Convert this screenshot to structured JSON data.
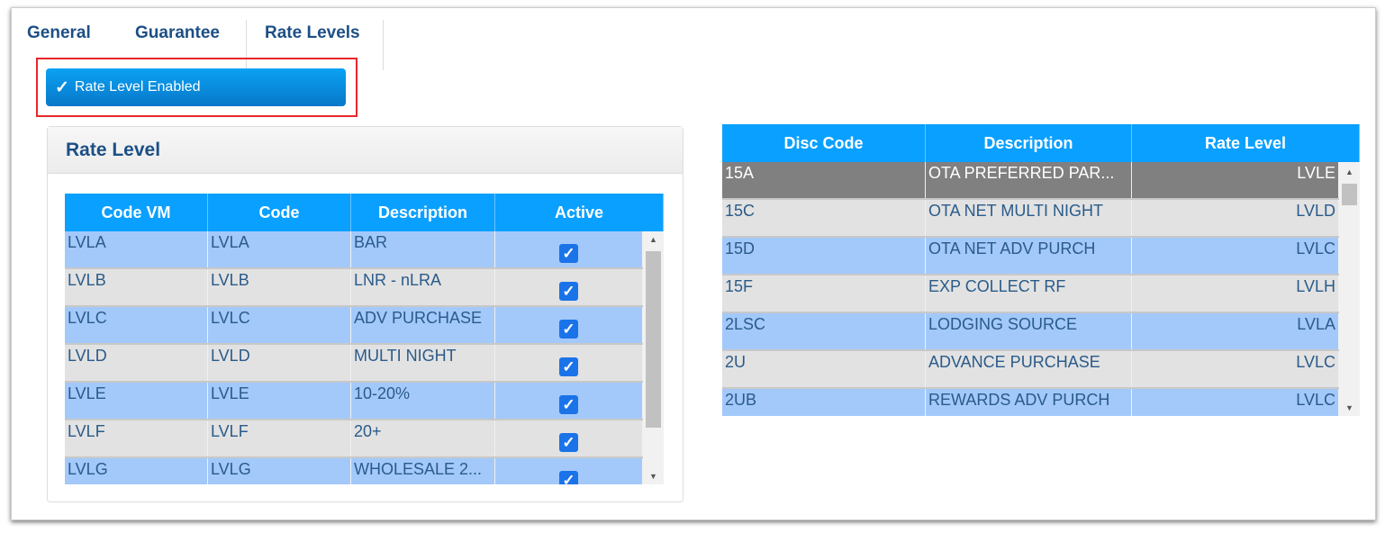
{
  "tabs": [
    "General",
    "Guarantee",
    "Rate Levels"
  ],
  "rate_level_enabled": {
    "label": "Rate Level Enabled",
    "checked": true
  },
  "panel": {
    "title": "Rate Level"
  },
  "left_table": {
    "columns": [
      "Code VM",
      "Code",
      "Description",
      "Active"
    ],
    "rows": [
      {
        "code_vm": "LVLA",
        "code": "LVLA",
        "description": "BAR",
        "active": true
      },
      {
        "code_vm": "LVLB",
        "code": "LVLB",
        "description": "LNR - nLRA",
        "active": true
      },
      {
        "code_vm": "LVLC",
        "code": "LVLC",
        "description": "ADV PURCHASE",
        "active": true
      },
      {
        "code_vm": "LVLD",
        "code": "LVLD",
        "description": "MULTI NIGHT",
        "active": true
      },
      {
        "code_vm": "LVLE",
        "code": "LVLE",
        "description": "10-20%",
        "active": true
      },
      {
        "code_vm": "LVLF",
        "code": "LVLF",
        "description": "20+",
        "active": true
      },
      {
        "code_vm": "LVLG",
        "code": "LVLG",
        "description": "WHOLESALE 2...",
        "active": true
      }
    ]
  },
  "right_table": {
    "columns": [
      "Disc Code",
      "Description",
      "Rate Level"
    ],
    "rows": [
      {
        "disc_code": "15A",
        "description": "OTA PREFERRED PAR...",
        "rate_level": "LVLE",
        "selected": true
      },
      {
        "disc_code": "15C",
        "description": "OTA NET MULTI NIGHT",
        "rate_level": "LVLD"
      },
      {
        "disc_code": "15D",
        "description": "OTA NET ADV PURCH",
        "rate_level": "LVLC"
      },
      {
        "disc_code": "15F",
        "description": "EXP COLLECT RF",
        "rate_level": "LVLH"
      },
      {
        "disc_code": "2LSC",
        "description": "LODGING SOURCE",
        "rate_level": "LVLA"
      },
      {
        "disc_code": "2U",
        "description": "ADVANCE PURCHASE",
        "rate_level": "LVLC"
      },
      {
        "disc_code": "2UB",
        "description": "REWARDS ADV PURCH",
        "rate_level": "LVLC"
      }
    ]
  },
  "colors": {
    "header": "#0aa0ff",
    "row_blue": "#a3c9fb",
    "row_gray": "#e2e2e2",
    "selected": "#808080",
    "highlight_box": "#e8262a"
  }
}
